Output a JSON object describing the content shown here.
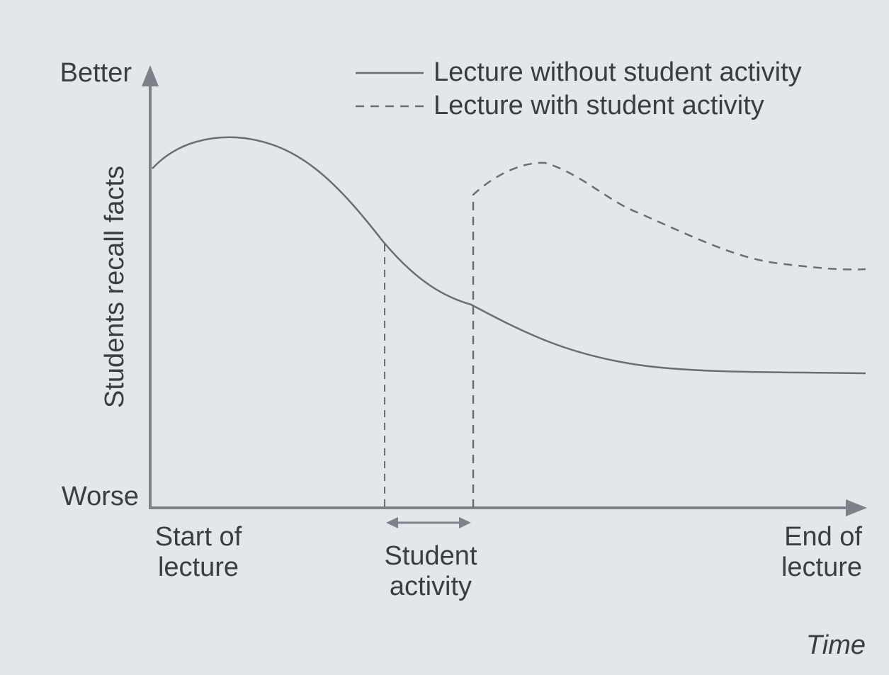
{
  "axes": {
    "y_top": "Better",
    "y_bottom": "Worse",
    "y_label": "Students recall facts",
    "x_label": "Time"
  },
  "legend": [
    {
      "label": "Lecture without student activity"
    },
    {
      "label": "Lecture with student activity"
    }
  ],
  "x_labels": {
    "start": [
      "Start of",
      "lecture"
    ],
    "activity": [
      "Student",
      "activity"
    ],
    "end": [
      "End of",
      "lecture"
    ]
  }
}
